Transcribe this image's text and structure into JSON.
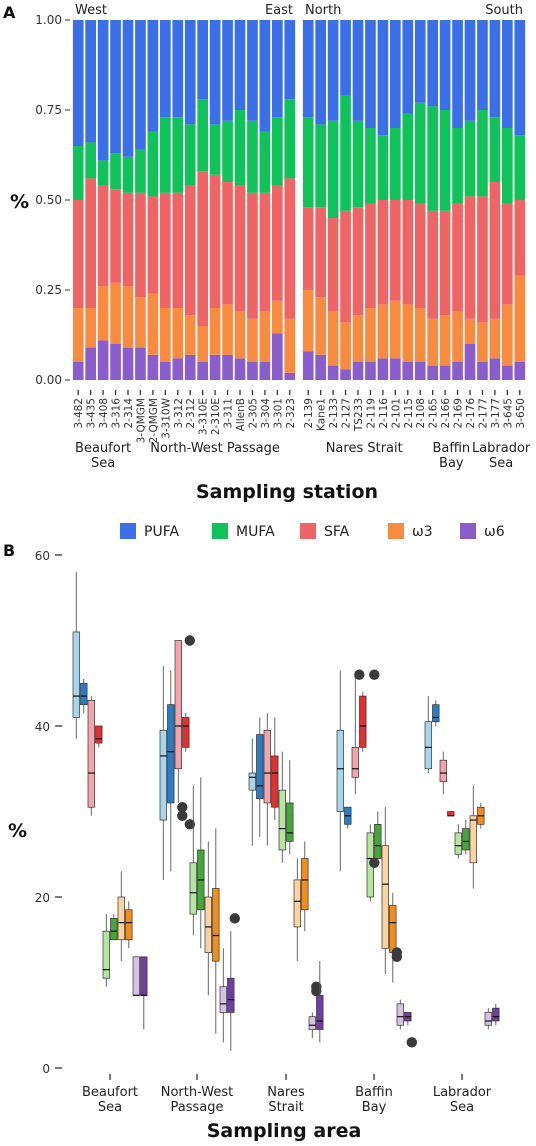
{
  "panels": {
    "a_label": "A",
    "b_label": "B"
  },
  "legend": [
    {
      "label": "PUFA",
      "color": "#3a6fe8"
    },
    {
      "label": "MUFA",
      "color": "#10c25a"
    },
    {
      "label": "SFA",
      "color": "#ef6464"
    },
    {
      "label": "ω3",
      "color": "#f98b40"
    },
    {
      "label": "ω6",
      "color": "#8a5dcc"
    }
  ],
  "chart_data": [
    {
      "type": "bar",
      "stacked": true,
      "ylabel": "%",
      "xlabel": "Sampling station",
      "yticks": [
        "0.00",
        "0.25",
        "0.50",
        "0.75",
        "1.00"
      ],
      "ylim": [
        0,
        1
      ],
      "series_order_bottom_to_top": [
        "ω6",
        "ω3",
        "SFA",
        "MUFA",
        "PUFA"
      ],
      "facets": [
        {
          "corner_left": "West",
          "corner_right": "East",
          "stations": [
            "3-482",
            "3-435",
            "3-408",
            "3-316",
            "2-314",
            "3-QMGM",
            "2-QMGM",
            "3-310W",
            "3-312",
            "2-312",
            "3-310E",
            "2-310E",
            "3-311",
            "AllenB",
            "2-305",
            "3-304",
            "3-301",
            "2-323"
          ],
          "omega6": [
            0.05,
            0.09,
            0.11,
            0.1,
            0.09,
            0.09,
            0.07,
            0.05,
            0.06,
            0.07,
            0.05,
            0.07,
            0.07,
            0.06,
            0.05,
            0.05,
            0.13,
            0.02
          ],
          "omega3": [
            0.2,
            0.2,
            0.26,
            0.27,
            0.26,
            0.23,
            0.24,
            0.2,
            0.2,
            0.18,
            0.15,
            0.2,
            0.21,
            0.19,
            0.17,
            0.19,
            0.22,
            0.17
          ],
          "sfa_top": [
            0.5,
            0.56,
            0.54,
            0.53,
            0.52,
            0.52,
            0.51,
            0.52,
            0.52,
            0.54,
            0.58,
            0.57,
            0.55,
            0.54,
            0.52,
            0.52,
            0.54,
            0.56
          ],
          "mufa_top": [
            0.65,
            0.66,
            0.61,
            0.63,
            0.62,
            0.64,
            0.69,
            0.73,
            0.73,
            0.71,
            0.78,
            0.71,
            0.72,
            0.75,
            0.72,
            0.69,
            0.73,
            0.78
          ],
          "groups": [
            {
              "label_lines": [
                "Beaufort",
                "Sea"
              ],
              "span": [
                0,
                4
              ]
            },
            {
              "label_lines": [
                "North-West Passage"
              ],
              "span": [
                5,
                17
              ]
            }
          ]
        },
        {
          "corner_left": "North",
          "corner_right": "South",
          "stations": [
            "2-139",
            "Kane1",
            "2-133",
            "2-127",
            "TS233",
            "2-119",
            "2-116",
            "2-101",
            "2-115",
            "2-108",
            "2-165",
            "2-166",
            "2-169",
            "2-176",
            "2-177",
            "3-177",
            "3-645",
            "3-650"
          ],
          "omega6": [
            0.08,
            0.07,
            0.04,
            0.03,
            0.05,
            0.05,
            0.06,
            0.06,
            0.05,
            0.05,
            0.04,
            0.04,
            0.05,
            0.1,
            0.05,
            0.06,
            0.04,
            0.05
          ],
          "omega3": [
            0.25,
            0.23,
            0.19,
            0.16,
            0.18,
            0.2,
            0.21,
            0.22,
            0.21,
            0.2,
            0.17,
            0.18,
            0.19,
            0.17,
            0.16,
            0.17,
            0.21,
            0.29
          ],
          "sfa_top": [
            0.48,
            0.48,
            0.45,
            0.47,
            0.48,
            0.49,
            0.5,
            0.5,
            0.5,
            0.49,
            0.47,
            0.47,
            0.49,
            0.51,
            0.51,
            0.55,
            0.49,
            0.5
          ],
          "mufa_top": [
            0.73,
            0.71,
            0.72,
            0.79,
            0.72,
            0.7,
            0.68,
            0.7,
            0.74,
            0.77,
            0.76,
            0.75,
            0.7,
            0.72,
            0.75,
            0.73,
            0.7,
            0.68
          ],
          "groups": [
            {
              "label_lines": [
                "Nares Strait"
              ],
              "span": [
                0,
                9
              ]
            },
            {
              "label_lines": [
                "Baffin",
                "Bay"
              ],
              "span": [
                10,
                13
              ]
            },
            {
              "label_lines": [
                "Labrador",
                "Sea"
              ],
              "span": [
                14,
                17
              ]
            }
          ]
        }
      ]
    },
    {
      "type": "box",
      "ylabel": "%",
      "xlabel": "Sampling area",
      "yticks": [
        0,
        20,
        40,
        60
      ],
      "ylim": [
        0,
        60
      ],
      "categories": [
        {
          "label_lines": [
            "Beaufort",
            "Sea"
          ]
        },
        {
          "label_lines": [
            "North-West",
            "Passage"
          ]
        },
        {
          "label_lines": [
            "Nares",
            "Strait"
          ]
        },
        {
          "label_lines": [
            "Baffin",
            "Bay"
          ]
        },
        {
          "label_lines": [
            "Labrador",
            "Sea"
          ]
        }
      ],
      "variable_order": [
        "PUFA",
        "MUFA",
        "SFA",
        "ω3",
        "ω6"
      ],
      "season_pair_colors": {
        "PUFA": [
          "#a8d4ec",
          "#2a7cc4"
        ],
        "MUFA": [
          "#b5e6a0",
          "#44a73a"
        ],
        "SFA": [
          "#f5a3ab",
          "#e03030"
        ],
        "ω3": [
          "#fcd3a0",
          "#f28d1c"
        ],
        "ω6": [
          "#d7c1e4",
          "#6e3fa0"
        ]
      },
      "boxes": [
        [
          {
            "var": "PUFA",
            "min": 38.5,
            "q1": 41,
            "med": 43.5,
            "q3": 51,
            "max": 58,
            "outliers": []
          },
          {
            "var": "PUFA",
            "min": 41.5,
            "q1": 42.5,
            "med": 43.5,
            "q3": 45,
            "max": 45.5,
            "outliers": []
          },
          {
            "var": "SFA",
            "min": 29.5,
            "q1": 30.5,
            "med": 34.5,
            "q3": 43,
            "max": 43.5,
            "outliers": []
          },
          {
            "var": "SFA",
            "min": 37.5,
            "q1": 38,
            "med": 38.5,
            "q3": 40,
            "max": 40,
            "outliers": []
          },
          {
            "var": "MUFA",
            "min": 9.5,
            "q1": 10.5,
            "med": 11.5,
            "q3": 16,
            "max": 18,
            "outliers": []
          },
          {
            "var": "MUFA",
            "min": 15,
            "q1": 15,
            "med": 16,
            "q3": 17.5,
            "max": 18,
            "outliers": []
          },
          {
            "var": "ω3",
            "min": 12.5,
            "q1": 15,
            "med": 17,
            "q3": 20,
            "max": 23,
            "outliers": []
          },
          {
            "var": "ω3",
            "min": 14,
            "q1": 15,
            "med": 17,
            "q3": 18.5,
            "max": 19.5,
            "outliers": []
          },
          {
            "var": "ω6",
            "min": 8.5,
            "q1": 8.5,
            "med": 8.5,
            "q3": 13,
            "max": 13,
            "outliers": []
          },
          {
            "var": "ω6",
            "min": 4.5,
            "q1": 8.5,
            "med": 8.5,
            "q3": 13,
            "max": 13,
            "outliers": []
          }
        ],
        [
          {
            "var": "PUFA",
            "min": 22,
            "q1": 29,
            "med": 36.5,
            "q3": 39.5,
            "max": 47,
            "outliers": []
          },
          {
            "var": "PUFA",
            "min": 23,
            "q1": 31,
            "med": 37,
            "q3": 42.5,
            "max": 46.5,
            "outliers": []
          },
          {
            "var": "SFA",
            "min": 31,
            "q1": 35,
            "med": 40,
            "q3": 50,
            "max": 50,
            "outliers": [
              29.5,
              30.5
            ]
          },
          {
            "var": "SFA",
            "min": 37,
            "q1": 37.5,
            "med": 40,
            "q3": 41,
            "max": 41.5,
            "outliers": [
              28.5,
              50
            ]
          },
          {
            "var": "MUFA",
            "min": 15.5,
            "q1": 18,
            "med": 20.5,
            "q3": 24,
            "max": 33,
            "outliers": []
          },
          {
            "var": "MUFA",
            "min": 14,
            "q1": 18.5,
            "med": 22,
            "q3": 25.5,
            "max": 34,
            "outliers": []
          },
          {
            "var": "ω3",
            "min": 8.5,
            "q1": 13.5,
            "med": 16.5,
            "q3": 20,
            "max": 26.5,
            "outliers": []
          },
          {
            "var": "ω3",
            "min": 4,
            "q1": 12.5,
            "med": 15.5,
            "q3": 21,
            "max": 28,
            "outliers": []
          },
          {
            "var": "ω6",
            "min": 3,
            "q1": 6.5,
            "med": 7.5,
            "q3": 9.5,
            "max": 14,
            "outliers": []
          },
          {
            "var": "ω6",
            "min": 2,
            "q1": 6.5,
            "med": 8,
            "q3": 10.5,
            "max": 16,
            "outliers": [
              17.5
            ]
          }
        ],
        [
          {
            "var": "PUFA",
            "min": 26,
            "q1": 32.5,
            "med": 34,
            "q3": 34.5,
            "max": 38.5,
            "outliers": []
          },
          {
            "var": "PUFA",
            "min": 27,
            "q1": 31.5,
            "med": 33,
            "q3": 39,
            "max": 41,
            "outliers": []
          },
          {
            "var": "SFA",
            "min": 26,
            "q1": 31,
            "med": 34.5,
            "q3": 39.5,
            "max": 41.5,
            "outliers": []
          },
          {
            "var": "SFA",
            "min": 29,
            "q1": 30.5,
            "med": 34.5,
            "q3": 36.5,
            "max": 41,
            "outliers": []
          },
          {
            "var": "MUFA",
            "min": 24,
            "q1": 25.5,
            "med": 28,
            "q3": 32.5,
            "max": 37,
            "outliers": []
          },
          {
            "var": "MUFA",
            "min": 25,
            "q1": 26.5,
            "med": 27.5,
            "q3": 31,
            "max": 36,
            "outliers": []
          },
          {
            "var": "ω3",
            "min": 12.5,
            "q1": 16.5,
            "med": 19.5,
            "q3": 22,
            "max": 24.5,
            "outliers": []
          },
          {
            "var": "ω3",
            "min": 16,
            "q1": 18.5,
            "med": 22,
            "q3": 24.5,
            "max": 26.5,
            "outliers": []
          },
          {
            "var": "ω6",
            "min": 3.5,
            "q1": 4.5,
            "med": 5,
            "q3": 6,
            "max": 6.5,
            "outliers": [
              9,
              9.5
            ]
          },
          {
            "var": "ω6",
            "min": 3,
            "q1": 4.5,
            "med": 5.5,
            "q3": 8.5,
            "max": 12.5,
            "outliers": []
          }
        ],
        [
          {
            "var": "PUFA",
            "min": 23,
            "q1": 30,
            "med": 35,
            "q3": 39.5,
            "max": 46.5,
            "outliers": []
          },
          {
            "var": "PUFA",
            "min": 28,
            "q1": 28.5,
            "med": 29.5,
            "q3": 30.5,
            "max": 30.5,
            "outliers": []
          },
          {
            "var": "SFA",
            "min": 32,
            "q1": 34,
            "med": 35,
            "q3": 37.5,
            "max": 46,
            "outliers": [
              46
            ]
          },
          {
            "var": "SFA",
            "min": 37,
            "q1": 37.5,
            "med": 40,
            "q3": 43.5,
            "max": 44,
            "outliers": []
          },
          {
            "var": "MUFA",
            "min": 19.5,
            "q1": 20,
            "med": 24.5,
            "q3": 27.5,
            "max": 28.5,
            "outliers": [
              46,
              24
            ]
          },
          {
            "var": "MUFA",
            "min": 24,
            "q1": 24.5,
            "med": 26,
            "q3": 28.5,
            "max": 30,
            "outliers": []
          },
          {
            "var": "ω3",
            "min": 11,
            "q1": 14,
            "med": 21.5,
            "q3": 26,
            "max": 30.5,
            "outliers": []
          },
          {
            "var": "ω3",
            "min": 10,
            "q1": 13.5,
            "med": 17,
            "q3": 19,
            "max": 20.5,
            "outliers": [
              13,
              13.5
            ]
          },
          {
            "var": "ω6",
            "min": 4.5,
            "q1": 5,
            "med": 6,
            "q3": 7.5,
            "max": 8,
            "outliers": []
          },
          {
            "var": "ω6",
            "min": 5,
            "q1": 5.5,
            "med": 6,
            "q3": 6.5,
            "max": 6.5,
            "outliers": [
              3
            ]
          }
        ],
        [
          {
            "var": "PUFA",
            "min": 34.5,
            "q1": 35,
            "med": 37.5,
            "q3": 40.5,
            "max": 43.5,
            "outliers": []
          },
          {
            "var": "PUFA",
            "min": 40,
            "q1": 40.5,
            "med": 41,
            "q3": 42.5,
            "max": 43,
            "outliers": []
          },
          {
            "var": "SFA",
            "min": 32,
            "q1": 33.5,
            "med": 34.5,
            "q3": 36,
            "max": 37,
            "outliers": []
          },
          {
            "var": "SFA",
            "min": 29.5,
            "q1": 29.5,
            "med": 29.5,
            "q3": 30,
            "max": 30,
            "outliers": []
          },
          {
            "var": "MUFA",
            "min": 24.5,
            "q1": 25,
            "med": 26,
            "q3": 27.5,
            "max": 28.5,
            "outliers": []
          },
          {
            "var": "MUFA",
            "min": 25,
            "q1": 25.5,
            "med": 26.5,
            "q3": 28,
            "max": 29,
            "outliers": []
          },
          {
            "var": "ω3",
            "min": 21,
            "q1": 24,
            "med": 29,
            "q3": 29.5,
            "max": 33,
            "outliers": []
          },
          {
            "var": "ω3",
            "min": 28,
            "q1": 28.5,
            "med": 29.5,
            "q3": 30.5,
            "max": 31,
            "outliers": []
          },
          {
            "var": "ω6",
            "min": 4.5,
            "q1": 5,
            "med": 5.5,
            "q3": 6.5,
            "max": 7,
            "outliers": []
          },
          {
            "var": "ω6",
            "min": 5,
            "q1": 5.5,
            "med": 6,
            "q3": 7,
            "max": 7.5,
            "outliers": []
          }
        ]
      ]
    }
  ]
}
